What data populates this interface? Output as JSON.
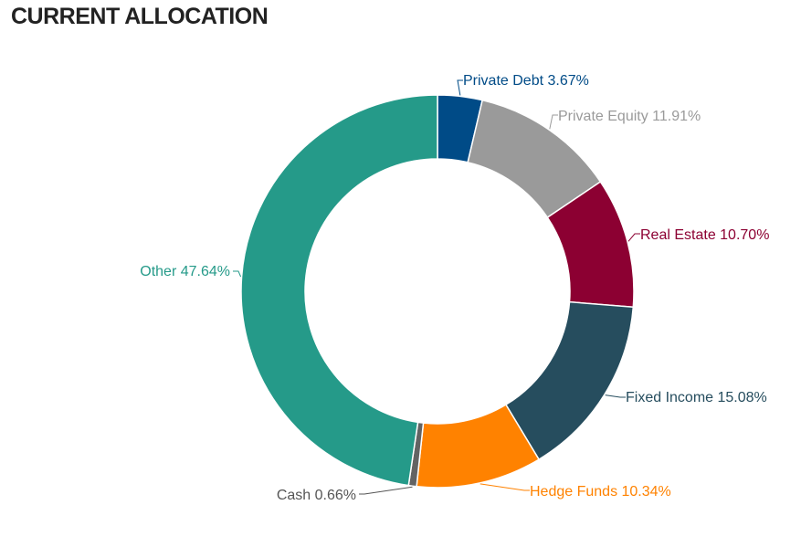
{
  "header": {
    "title": "CURRENT ALLOCATION"
  },
  "chart_data": {
    "type": "pie",
    "donut": true,
    "categories": [
      "Private Debt",
      "Private Equity",
      "Real Estate",
      "Fixed Income",
      "Hedge Funds",
      "Cash",
      "Other"
    ],
    "values": [
      3.67,
      11.91,
      10.7,
      15.08,
      10.34,
      0.66,
      47.64
    ],
    "labels": [
      "Private Debt 3.67%",
      "Private Equity 11.91%",
      "Real Estate 10.70%",
      "Fixed Income 15.08%",
      "Hedge Funds 10.34%",
      "Cash 0.66%",
      "Other 47.64%"
    ],
    "colors": [
      "#004B87",
      "#9A9A9A",
      "#8C0032",
      "#264D5E",
      "#FF8200",
      "#636363",
      "#259A89"
    ],
    "label_colors": [
      "#004B87",
      "#9A9A9A",
      "#8C0032",
      "#264D5E",
      "#FF8200",
      "#555555",
      "#259A89"
    ],
    "legend": "none"
  }
}
